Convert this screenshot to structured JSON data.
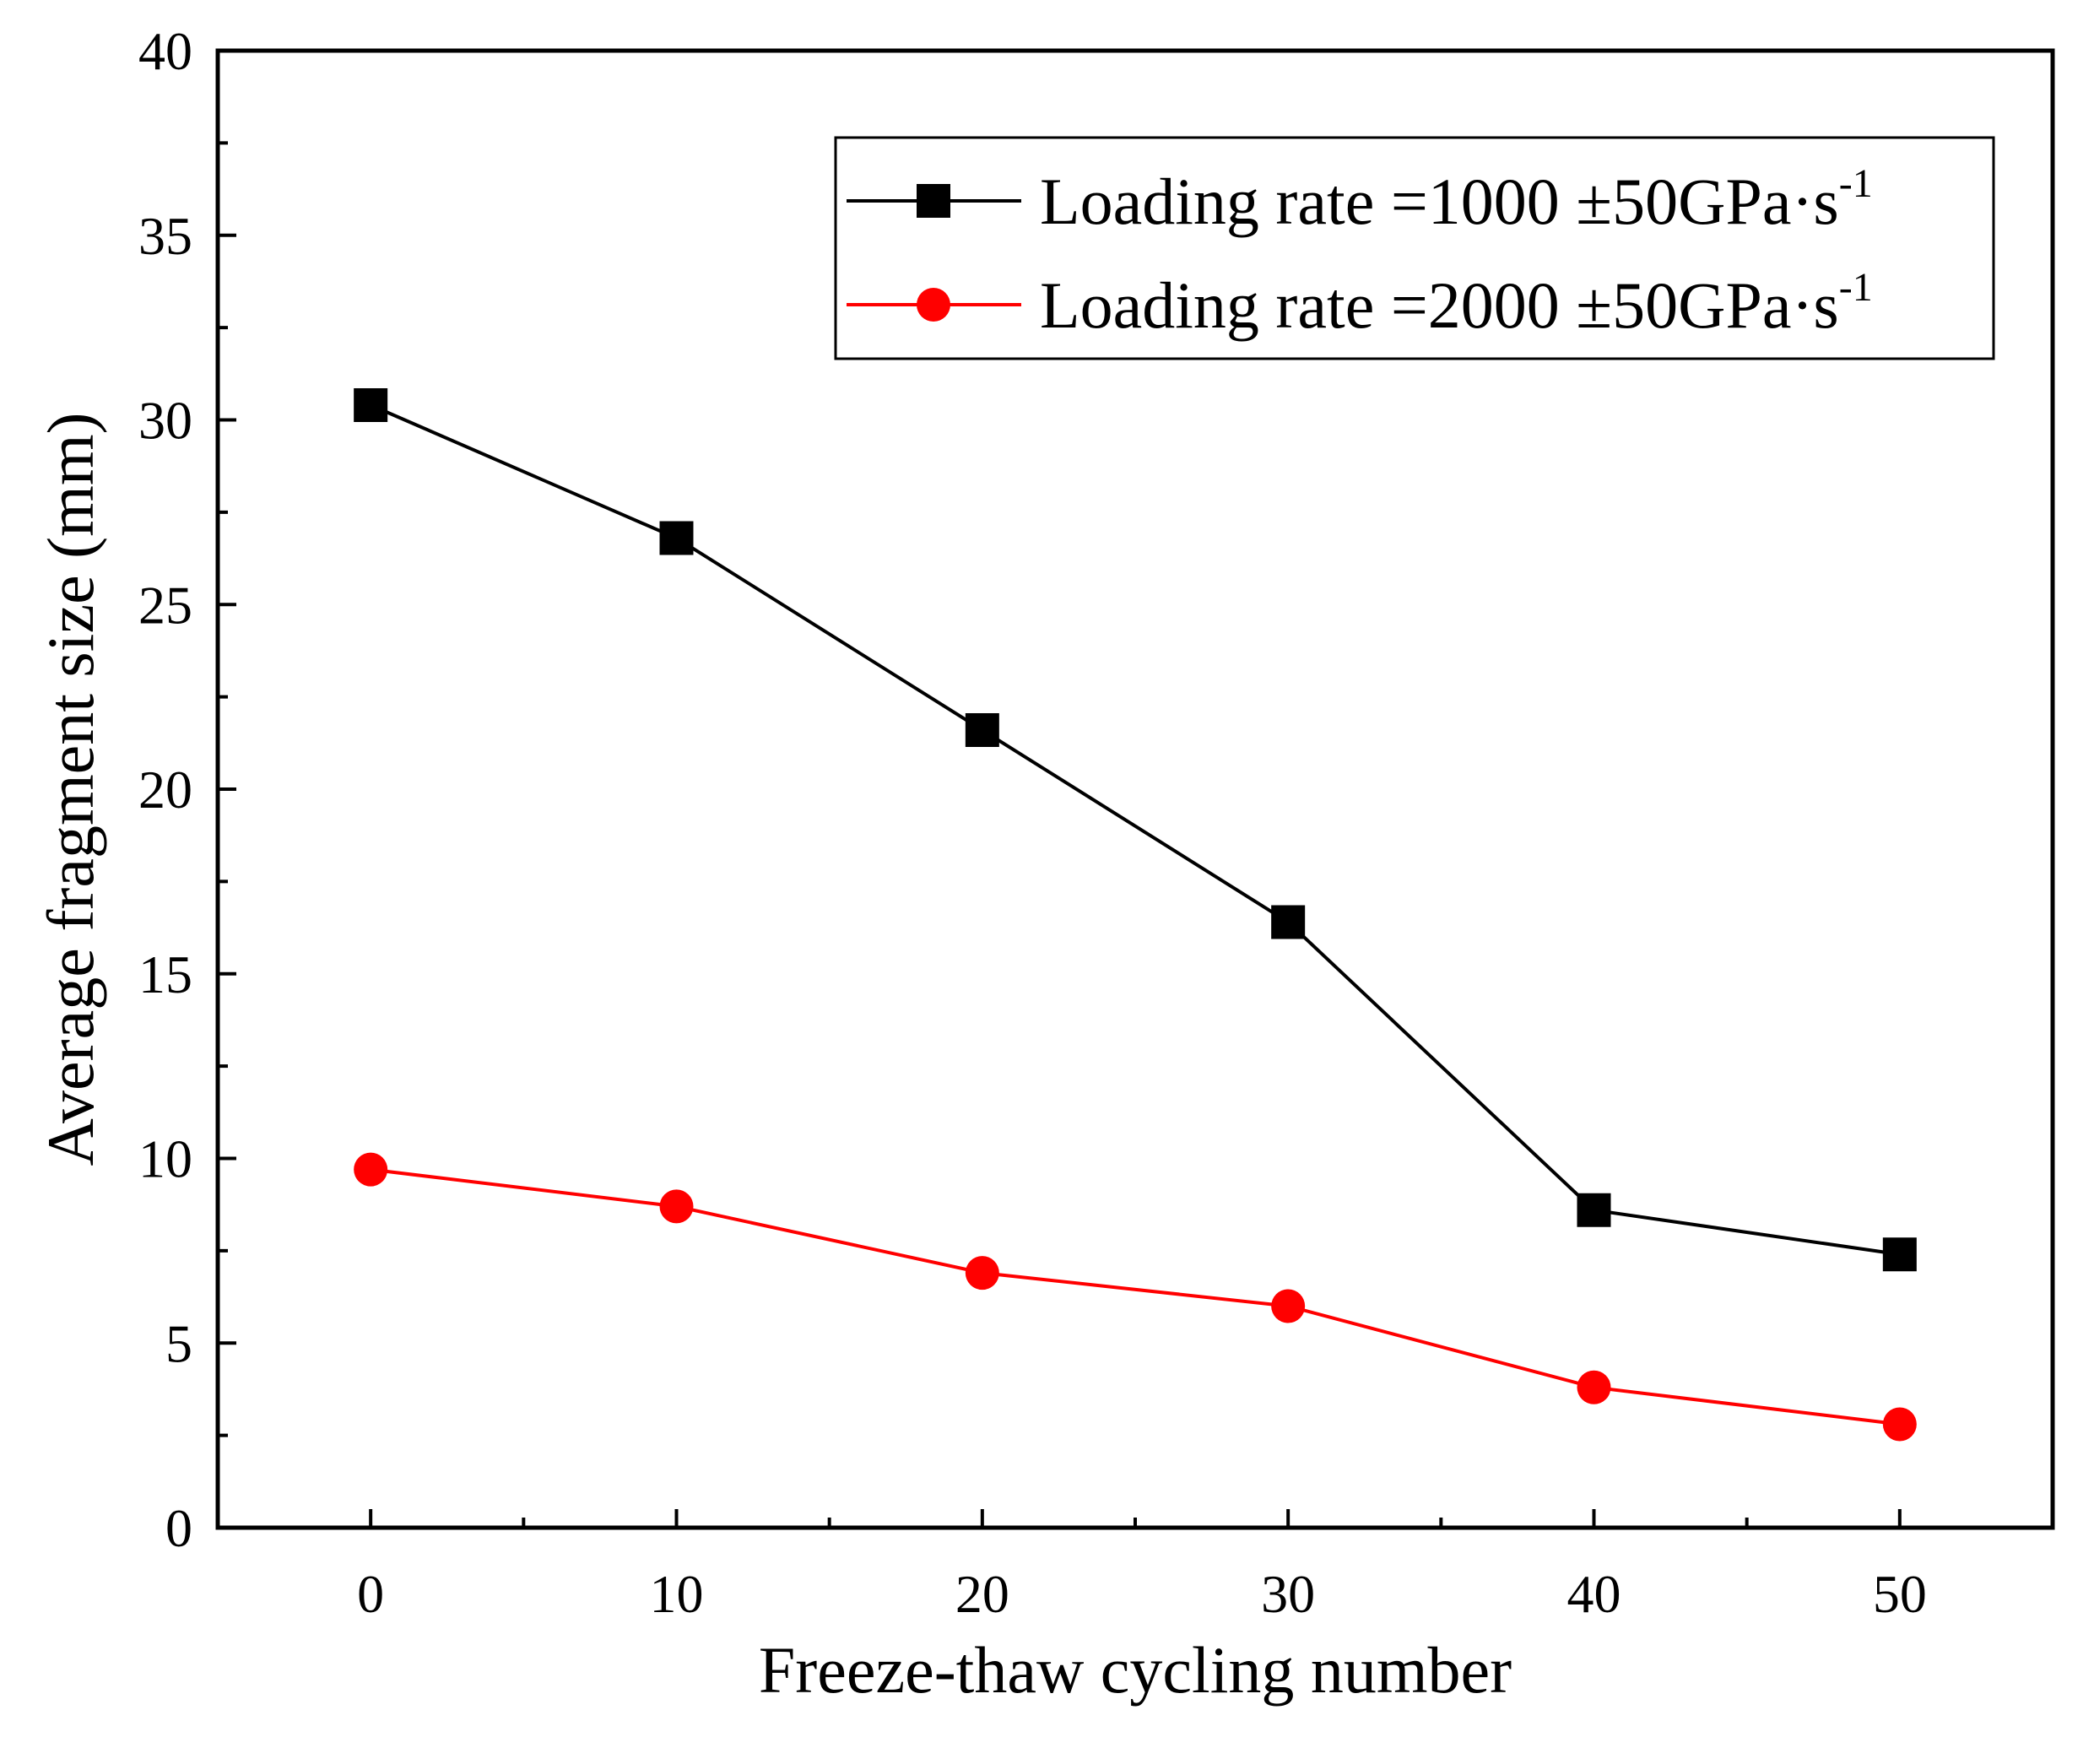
{
  "chart_data": {
    "type": "line",
    "title": "",
    "xlabel": "Freeze-thaw cycling number",
    "ylabel": "Average fragment size (mm)",
    "xlim": [
      -5,
      55
    ],
    "ylim": [
      0,
      40
    ],
    "x": [
      0,
      10,
      20,
      30,
      40,
      50
    ],
    "xticks": [
      0,
      10,
      20,
      30,
      40,
      50
    ],
    "yticks": [
      0,
      5,
      10,
      15,
      20,
      25,
      30,
      35,
      40
    ],
    "grid": false,
    "legend_position": "top-right",
    "series": [
      {
        "name": "Loading rate =1000 ±50GPa·s",
        "name_superscript": "-1",
        "color": "#000000",
        "marker": "square",
        "values": [
          30.4,
          26.8,
          21.6,
          16.4,
          8.6,
          7.4
        ]
      },
      {
        "name": "Loading rate =2000 ±50GPa·s",
        "name_superscript": "-1",
        "color": "#ff0000",
        "marker": "circle",
        "values": [
          9.7,
          8.7,
          6.9,
          6.0,
          3.8,
          2.8
        ]
      }
    ]
  }
}
